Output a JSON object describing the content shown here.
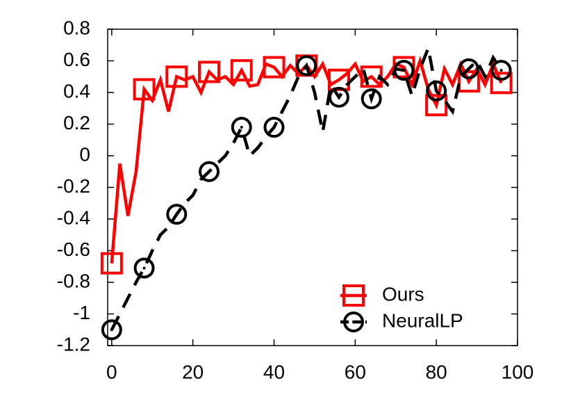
{
  "chart_data": {
    "type": "line",
    "x": [
      0,
      2,
      4,
      6,
      8,
      10,
      12,
      14,
      16,
      18,
      20,
      22,
      24,
      26,
      28,
      30,
      32,
      34,
      36,
      38,
      40,
      42,
      44,
      46,
      48,
      50,
      52,
      54,
      56,
      58,
      60,
      62,
      64,
      66,
      68,
      70,
      72,
      74,
      76,
      78,
      80,
      82,
      84,
      86,
      88,
      90,
      92,
      94,
      96
    ],
    "series": [
      {
        "name": "Ours",
        "color": "#ff0000",
        "dash": false,
        "marker": "square",
        "values": [
          -0.68,
          -0.05,
          -0.38,
          -0.1,
          0.42,
          0.35,
          0.48,
          0.28,
          0.5,
          0.48,
          0.5,
          0.4,
          0.53,
          0.48,
          0.5,
          0.45,
          0.54,
          0.44,
          0.45,
          0.58,
          0.56,
          0.5,
          0.57,
          0.52,
          0.57,
          0.5,
          0.58,
          0.45,
          0.48,
          0.52,
          0.58,
          0.47,
          0.5,
          0.45,
          0.5,
          0.58,
          0.56,
          0.45,
          0.6,
          0.42,
          0.32,
          0.55,
          0.45,
          0.58,
          0.47,
          0.55,
          0.45,
          0.58,
          0.46
        ]
      },
      {
        "name": "NeuralLP",
        "color": "#000000",
        "dash": true,
        "marker": "circle",
        "values": [
          -1.1,
          -1.0,
          -0.9,
          -0.8,
          -0.71,
          -0.6,
          -0.5,
          -0.45,
          -0.37,
          -0.3,
          -0.25,
          -0.15,
          -0.1,
          -0.05,
          0.0,
          0.08,
          0.18,
          0.0,
          0.05,
          0.12,
          0.18,
          0.28,
          0.38,
          0.5,
          0.57,
          0.4,
          0.15,
          0.45,
          0.37,
          0.45,
          0.5,
          0.55,
          0.36,
          0.5,
          0.45,
          0.55,
          0.54,
          0.38,
          0.55,
          0.68,
          0.41,
          0.35,
          0.28,
          0.5,
          0.55,
          0.6,
          0.5,
          0.62,
          0.54
        ]
      }
    ],
    "xlim": [
      -1,
      100
    ],
    "xticks": [
      0,
      20,
      40,
      60,
      80,
      100
    ],
    "ylim": [
      -1.2,
      0.8
    ],
    "yticks": [
      -1.2,
      -1,
      -0.8,
      -0.6,
      -0.4,
      -0.2,
      0,
      0.2,
      0.4,
      0.6,
      0.8
    ],
    "legend": "bottom-right"
  }
}
